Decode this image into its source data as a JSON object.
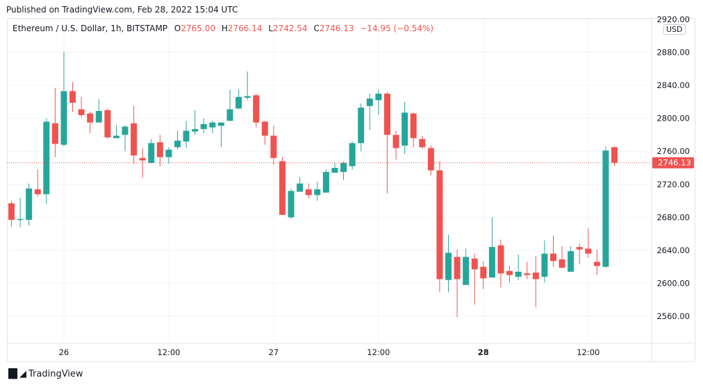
{
  "published": "Published on TradingView.com, Feb 28, 2022 15:04 UTC",
  "legend": {
    "symbol": "Ethereum / U.S. Dollar, 1h, BITSTAMP",
    "o_label": "O",
    "o": "2765.00",
    "h_label": "H",
    "h": "2766.14",
    "l_label": "L",
    "l": "2742.54",
    "c_label": "C",
    "c": "2746.13",
    "change": "−14.95 (−0.54%)"
  },
  "currency_badge": "USD",
  "footer": {
    "logo_text": "TradingView",
    "logo_icon": "tradingview-logo-icon"
  },
  "colors": {
    "up": "#26a69a",
    "down": "#ef5350",
    "grid": "#f0f3fa",
    "text": "#131722"
  },
  "chart_data": {
    "type": "candlestick",
    "interval": "1h",
    "ylim": [
      2530,
      2925
    ],
    "grid": true,
    "y_ticks": [
      "2560.00",
      "2600.00",
      "2640.00",
      "2680.00",
      "2720.00",
      "2760.00",
      "2800.00",
      "2840.00",
      "2880.00",
      "2920.00"
    ],
    "x_ticks": [
      {
        "label": "26",
        "time": "Feb 26 00:00"
      },
      {
        "label": "12:00",
        "time": "Feb 26 12:00"
      },
      {
        "label": "27",
        "time": "Feb 27 00:00"
      },
      {
        "label": "12:00",
        "time": "Feb 27 12:00"
      },
      {
        "label": "28",
        "time": "Feb 28 00:00"
      },
      {
        "label": "12:00",
        "time": "Feb 28 12:00"
      }
    ],
    "last_price": {
      "value": 2746.13,
      "label": "2746.13"
    },
    "columns": [
      "time",
      "open",
      "high",
      "low",
      "close"
    ],
    "candles": [
      [
        "Feb 25 18:00",
        2697,
        2700,
        2669,
        2677
      ],
      [
        "Feb 25 19:00",
        2677,
        2704,
        2668,
        2678
      ],
      [
        "Feb 25 20:00",
        2677,
        2721,
        2670,
        2715
      ],
      [
        "Feb 25 21:00",
        2714,
        2738,
        2705,
        2708
      ],
      [
        "Feb 25 22:00",
        2708,
        2800,
        2696,
        2796
      ],
      [
        "Feb 25 23:00",
        2794,
        2837,
        2753,
        2769
      ],
      [
        "Feb 26 00:00",
        2768,
        2881,
        2766,
        2833
      ],
      [
        "Feb 26 01:00",
        2833,
        2844,
        2808,
        2819
      ],
      [
        "Feb 26 02:00",
        2811,
        2826,
        2801,
        2804
      ],
      [
        "Feb 26 03:00",
        2806,
        2808,
        2782,
        2795
      ],
      [
        "Feb 26 04:00",
        2795,
        2823,
        2795,
        2809
      ],
      [
        "Feb 26 05:00",
        2810,
        2812,
        2775,
        2777
      ],
      [
        "Feb 26 06:00",
        2776,
        2792,
        2776,
        2779
      ],
      [
        "Feb 26 07:00",
        2780,
        2792,
        2760,
        2790
      ],
      [
        "Feb 26 08:00",
        2794,
        2815,
        2745,
        2755
      ],
      [
        "Feb 26 09:00",
        2752,
        2764,
        2728,
        2749
      ],
      [
        "Feb 26 10:00",
        2746,
        2775,
        2745,
        2770
      ],
      [
        "Feb 26 11:00",
        2771,
        2780,
        2742,
        2753
      ],
      [
        "Feb 26 12:00",
        2753,
        2765,
        2745,
        2762
      ],
      [
        "Feb 26 13:00",
        2765,
        2785,
        2762,
        2773
      ],
      [
        "Feb 26 14:00",
        2772,
        2797,
        2764,
        2785
      ],
      [
        "Feb 26 15:00",
        2784,
        2810,
        2780,
        2787
      ],
      [
        "Feb 26 16:00",
        2787,
        2800,
        2782,
        2793
      ],
      [
        "Feb 26 17:00",
        2789,
        2797,
        2782,
        2795
      ],
      [
        "Feb 26 18:00",
        2791,
        2795,
        2765,
        2795
      ],
      [
        "Feb 26 19:00",
        2797,
        2835,
        2797,
        2811
      ],
      [
        "Feb 26 20:00",
        2812,
        2835,
        2811,
        2826
      ],
      [
        "Feb 26 21:00",
        2825,
        2857,
        2822,
        2827
      ],
      [
        "Feb 26 22:00",
        2828,
        2830,
        2789,
        2795
      ],
      [
        "Feb 26 23:00",
        2796,
        2797,
        2768,
        2779
      ],
      [
        "Feb 27 00:00",
        2779,
        2791,
        2744,
        2752
      ],
      [
        "Feb 27 01:00",
        2748,
        2753,
        2683,
        2683
      ],
      [
        "Feb 27 02:00",
        2680,
        2715,
        2678,
        2712
      ],
      [
        "Feb 27 03:00",
        2711,
        2729,
        2711,
        2721
      ],
      [
        "Feb 27 04:00",
        2714,
        2721,
        2703,
        2707
      ],
      [
        "Feb 27 05:00",
        2707,
        2723,
        2700,
        2714
      ],
      [
        "Feb 27 06:00",
        2710,
        2738,
        2710,
        2735
      ],
      [
        "Feb 27 07:00",
        2734,
        2746,
        2734,
        2740
      ],
      [
        "Feb 27 08:00",
        2735,
        2748,
        2725,
        2746
      ],
      [
        "Feb 27 09:00",
        2742,
        2772,
        2738,
        2770
      ],
      [
        "Feb 27 10:00",
        2770,
        2818,
        2760,
        2813
      ],
      [
        "Feb 27 11:00",
        2815,
        2830,
        2786,
        2824
      ],
      [
        "Feb 27 12:00",
        2822,
        2835,
        2804,
        2830
      ],
      [
        "Feb 27 13:00",
        2830,
        2832,
        2709,
        2780
      ],
      [
        "Feb 27 14:00",
        2780,
        2785,
        2750,
        2764
      ],
      [
        "Feb 27 15:00",
        2767,
        2820,
        2757,
        2807
      ],
      [
        "Feb 27 16:00",
        2806,
        2807,
        2765,
        2776
      ],
      [
        "Feb 27 17:00",
        2775,
        2779,
        2763,
        2765
      ],
      [
        "Feb 27 18:00",
        2764,
        2767,
        2731,
        2737
      ],
      [
        "Feb 27 19:00",
        2737,
        2748,
        2589,
        2605
      ],
      [
        "Feb 27 20:00",
        2604,
        2659,
        2589,
        2637
      ],
      [
        "Feb 27 21:00",
        2632,
        2641,
        2559,
        2605
      ],
      [
        "Feb 27 22:00",
        2598,
        2642,
        2598,
        2632
      ],
      [
        "Feb 27 23:00",
        2630,
        2636,
        2574,
        2617
      ],
      [
        "Feb 28 00:00",
        2620,
        2627,
        2593,
        2606
      ],
      [
        "Feb 28 01:00",
        2607,
        2680,
        2607,
        2644
      ],
      [
        "Feb 28 02:00",
        2646,
        2653,
        2595,
        2612
      ],
      [
        "Feb 28 03:00",
        2615,
        2621,
        2601,
        2610
      ],
      [
        "Feb 28 04:00",
        2608,
        2635,
        2604,
        2614
      ],
      [
        "Feb 28 05:00",
        2612,
        2626,
        2605,
        2610
      ],
      [
        "Feb 28 06:00",
        2613,
        2633,
        2571,
        2605
      ],
      [
        "Feb 28 07:00",
        2608,
        2652,
        2601,
        2636
      ],
      [
        "Feb 28 08:00",
        2636,
        2658,
        2620,
        2627
      ],
      [
        "Feb 28 09:00",
        2629,
        2645,
        2618,
        2619
      ],
      [
        "Feb 28 10:00",
        2614,
        2645,
        2614,
        2639
      ],
      [
        "Feb 28 11:00",
        2644,
        2648,
        2623,
        2641
      ],
      [
        "Feb 28 12:00",
        2642,
        2667,
        2631,
        2636
      ],
      [
        "Feb 28 13:00",
        2626,
        2641,
        2610,
        2621
      ],
      [
        "Feb 28 14:00",
        2620,
        2766,
        2619,
        2761
      ],
      [
        "Feb 28 15:00",
        2765.0,
        2766.14,
        2742.54,
        2746.13
      ]
    ]
  }
}
